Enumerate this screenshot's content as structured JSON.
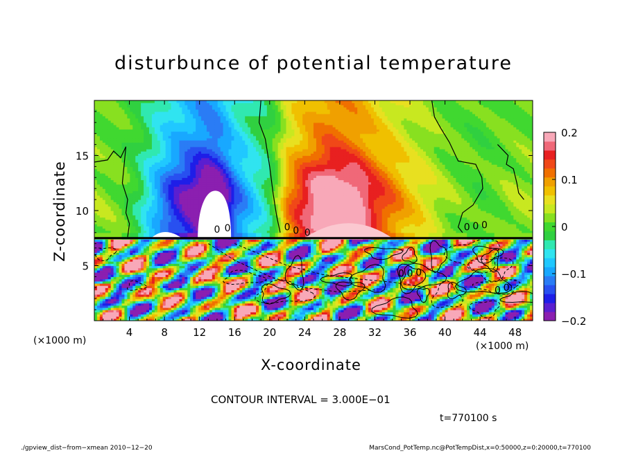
{
  "chart_data": {
    "type": "heatmap",
    "title": "disturbunce of potential temperature",
    "xlabel": "X-coordinate",
    "ylabel": "Z-coordinate",
    "x_unit": "(×1000 m)",
    "y_unit": "(×1000 m)",
    "xlim": [
      0,
      50
    ],
    "ylim": [
      0,
      20
    ],
    "x_ticks": [
      4,
      8,
      12,
      16,
      20,
      24,
      28,
      32,
      36,
      40,
      44,
      48
    ],
    "y_ticks": [
      5,
      10,
      15
    ],
    "colorbar": {
      "range": [
        -0.2,
        0.2
      ],
      "tick_labels": [
        "0.2",
        "0.1",
        "0",
        "−0.1",
        "−0.2"
      ],
      "tick_values": [
        0.2,
        0.1,
        0,
        -0.1,
        -0.2
      ],
      "colors": [
        "#8b1fb0",
        "#5a1fd0",
        "#1e1ee8",
        "#2850f0",
        "#2a7cf5",
        "#18a8ff",
        "#20c8ff",
        "#30e4f0",
        "#30e8b0",
        "#30d040",
        "#40d830",
        "#88e020",
        "#c8e820",
        "#e8e020",
        "#f0c000",
        "#f0a000",
        "#f07000",
        "#f04818",
        "#e82020",
        "#f06878",
        "#f8a8b8"
      ]
    },
    "contour_interval_text": "CONTOUR INTERVAL = 3.000E−01",
    "time_text": "t=770100 s",
    "contour_labels": [
      "0",
      "0",
      "0",
      "0",
      "0",
      "0",
      "0",
      "0",
      "0",
      "0",
      "0",
      "0",
      "0"
    ],
    "upper_field": {
      "z_range": [
        7.5,
        20
      ],
      "profile_x": [
        0,
        3,
        5,
        7,
        9,
        11,
        12,
        13,
        14,
        15,
        16,
        18,
        20,
        21,
        22,
        24,
        25.5,
        27,
        28.5,
        30,
        32,
        34,
        36,
        38,
        40,
        42,
        44,
        46,
        48,
        50
      ],
      "profile_val": [
        0.02,
        0.01,
        -0.02,
        -0.07,
        -0.12,
        -0.15,
        -0.17,
        -0.18,
        -0.17,
        -0.14,
        -0.1,
        -0.06,
        -0.02,
        0.02,
        0.08,
        0.13,
        0.16,
        0.18,
        0.17,
        0.16,
        0.12,
        0.09,
        0.06,
        0.04,
        0.02,
        0.01,
        0.0,
        0.01,
        0.02,
        0.02
      ]
    },
    "lower_field": {
      "z_range": [
        0,
        7.5
      ],
      "value_range": [
        -0.2,
        0.2
      ]
    }
  },
  "footer": {
    "left": "./gpview_dist−from−xmean  2010−12−20",
    "right": "MarsCond_PotTemp.nc@PotTempDist,x=0:50000,z=0:20000,t=770100"
  }
}
